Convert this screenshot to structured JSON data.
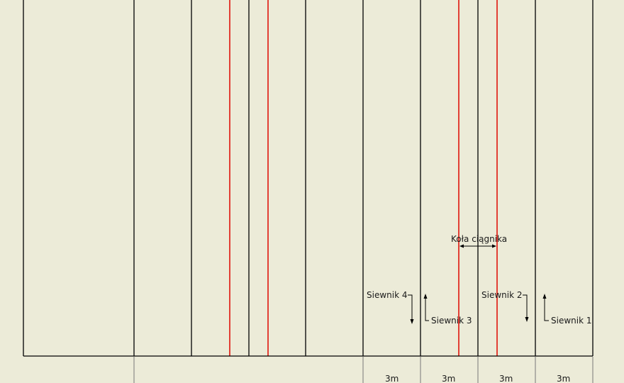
{
  "diagram": {
    "background": "#ecebd8",
    "line_color": "#000000",
    "wheel_track_color": "#e0140c",
    "wheel_label": "Koła ciągnika",
    "seeders": [
      {
        "label": "Siewnik 4",
        "arrow": "down"
      },
      {
        "label": "Siewnik 3",
        "arrow": "up"
      },
      {
        "label": "Siewnik 2",
        "arrow": "down"
      },
      {
        "label": "Siewnik 1",
        "arrow": "up"
      }
    ],
    "width_labels": [
      "3m",
      "3m",
      "3m",
      "3m"
    ]
  }
}
